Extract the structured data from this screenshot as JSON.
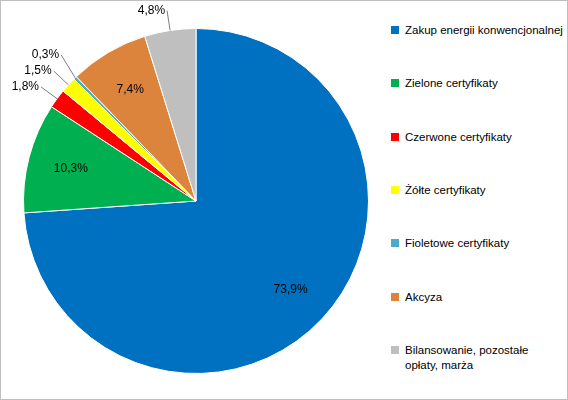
{
  "chart_data": {
    "type": "pie",
    "categories": [
      "Zakup energii konwencjonalnej",
      "Zielone certyfikaty",
      "Czerwone certyfikaty",
      "Żółte certyfikaty",
      "Fioletowe certyfikaty",
      "Akcyza",
      "Bilansowanie, pozostałe opłaty, marża"
    ],
    "values": [
      73.9,
      10.3,
      1.8,
      1.5,
      0.3,
      7.4,
      4.8
    ],
    "value_labels": [
      "73,9%",
      "10,3%",
      "1,8%",
      "1,5%",
      "0,3%",
      "7,4%",
      "4,8%"
    ],
    "colors": [
      "#0070c0",
      "#00b050",
      "#ff0000",
      "#ffff00",
      "#4bacc6",
      "#dd843c",
      "#bfbfbf"
    ],
    "data_labels": true,
    "legend": "right"
  }
}
